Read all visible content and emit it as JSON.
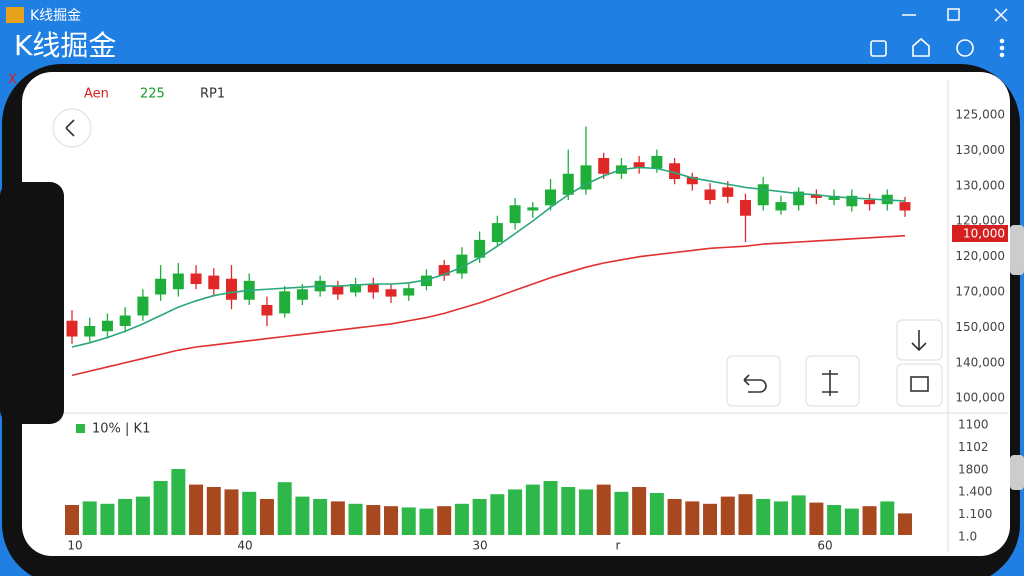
{
  "window": {
    "title": "K线掘金"
  },
  "header": {
    "title": "K线掘金"
  },
  "chart_data": {
    "type": "candlestick",
    "close_marker": "X",
    "legend": [
      "Aen",
      "225",
      "RP1"
    ],
    "legend_colors": [
      "#d42020",
      "#1a9a2a",
      "#333333"
    ],
    "price_labels": [
      "125,000",
      "130,000",
      "130,000",
      "120,000",
      "120,000",
      "170,000",
      "150,000",
      "140,000",
      "100,000"
    ],
    "price_tag": "10,000",
    "volume_legend": "10% | K1",
    "volume_labels": [
      "1100",
      "1102",
      "1800",
      "1.400",
      "1.100",
      "1.0"
    ],
    "x_labels": [
      "10",
      "40",
      "30",
      "r",
      "60"
    ],
    "ylim": [
      100,
      130
    ],
    "up_color": "#1fae3a",
    "down_color": "#e02828",
    "candles": {
      "open": [
        108.5,
        107.0,
        107.5,
        108.0,
        109.0,
        111.0,
        111.5,
        113.0,
        112.8,
        112.5,
        110.5,
        110.0,
        109.2,
        110.5,
        111.3,
        111.8,
        111.2,
        112.0,
        111.5,
        110.9,
        111.8,
        113.8,
        113.0,
        114.5,
        116.0,
        117.8,
        119.0,
        119.5,
        120.5,
        121.0,
        124.0,
        122.5,
        123.6,
        123.0,
        123.5,
        122.2,
        121.0,
        121.2,
        120.0,
        119.5,
        119.0,
        119.5,
        120.5,
        120.0,
        119.4,
        120.0,
        119.6,
        119.8
      ],
      "high": [
        109.5,
        108.8,
        109.2,
        109.8,
        111.5,
        113.8,
        114.0,
        113.8,
        113.5,
        113.8,
        113.0,
        110.8,
        111.8,
        112.0,
        112.8,
        112.3,
        112.6,
        112.6,
        112.0,
        112.0,
        113.4,
        114.3,
        115.5,
        117.0,
        118.5,
        120.2,
        119.8,
        122.0,
        124.8,
        127.0,
        124.5,
        124.0,
        124.2,
        124.8,
        124.0,
        122.6,
        121.6,
        121.8,
        120.6,
        122.2,
        120.4,
        121.2,
        121.0,
        121.0,
        121.0,
        120.6,
        121.0,
        120.3
      ],
      "low": [
        106.3,
        106.5,
        106.8,
        107.4,
        108.5,
        110.4,
        110.8,
        111.5,
        110.8,
        109.6,
        110.0,
        108.0,
        108.8,
        110.0,
        110.8,
        110.5,
        110.8,
        110.6,
        110.2,
        110.4,
        111.4,
        112.3,
        112.5,
        114.0,
        115.6,
        117.2,
        118.3,
        119.0,
        120.0,
        120.5,
        122.0,
        122.0,
        122.5,
        122.6,
        121.5,
        120.9,
        119.6,
        119.7,
        116.0,
        119.0,
        118.6,
        119.0,
        119.6,
        119.5,
        118.9,
        119.0,
        119.0,
        118.4
      ],
      "close": [
        107.0,
        108.0,
        108.5,
        109.0,
        110.8,
        112.5,
        113.0,
        112.0,
        111.5,
        110.5,
        112.3,
        109.0,
        111.3,
        111.5,
        112.3,
        111.0,
        112.0,
        111.2,
        110.8,
        111.6,
        112.8,
        112.8,
        114.8,
        116.2,
        117.8,
        119.5,
        119.3,
        121.0,
        122.5,
        123.3,
        122.5,
        123.3,
        123.0,
        124.2,
        122.0,
        121.5,
        120.0,
        120.3,
        118.5,
        121.5,
        119.8,
        120.8,
        120.2,
        120.4,
        120.4,
        119.6,
        120.5,
        119.0
      ]
    },
    "ma": [
      {
        "color": "#2aa87a",
        "values": [
          106.0,
          106.4,
          106.9,
          107.5,
          108.2,
          109.0,
          109.8,
          110.4,
          110.9,
          111.2,
          111.4,
          111.5,
          111.6,
          111.7,
          111.8,
          111.8,
          111.9,
          112.0,
          112.0,
          112.1,
          112.4,
          112.9,
          113.6,
          114.5,
          115.6,
          116.8,
          118.0,
          119.3,
          120.5,
          121.5,
          122.3,
          122.9,
          123.1,
          123.0,
          122.6,
          122.1,
          121.8,
          121.5,
          121.2,
          121.0,
          120.8,
          120.6,
          120.5,
          120.3,
          120.2,
          120.1,
          120.0,
          119.9
        ]
      },
      {
        "color": "#e03030",
        "values": [
          103.3,
          103.7,
          104.1,
          104.5,
          104.9,
          105.3,
          105.7,
          106.0,
          106.2,
          106.4,
          106.6,
          106.8,
          107.0,
          107.2,
          107.4,
          107.6,
          107.8,
          108.0,
          108.2,
          108.5,
          108.8,
          109.2,
          109.7,
          110.2,
          110.8,
          111.4,
          112.0,
          112.6,
          113.1,
          113.6,
          114.0,
          114.3,
          114.6,
          114.8,
          115.0,
          115.2,
          115.4,
          115.5,
          115.6,
          115.8,
          115.9,
          116.0,
          116.1,
          116.2,
          116.3,
          116.4,
          116.5,
          116.6
        ]
      }
    ],
    "volume": {
      "ylim": [
        0,
        100
      ],
      "up_color": "#2fb84a",
      "down_color": "#a8481e",
      "values": [
        25,
        28,
        26,
        30,
        32,
        45,
        55,
        42,
        40,
        38,
        36,
        30,
        44,
        32,
        30,
        28,
        26,
        25,
        24,
        23,
        22,
        24,
        26,
        30,
        34,
        38,
        42,
        45,
        40,
        38,
        42,
        36,
        40,
        35,
        30,
        28,
        26,
        32,
        34,
        30,
        28,
        33,
        27,
        25,
        22,
        24,
        28,
        18
      ]
    }
  }
}
